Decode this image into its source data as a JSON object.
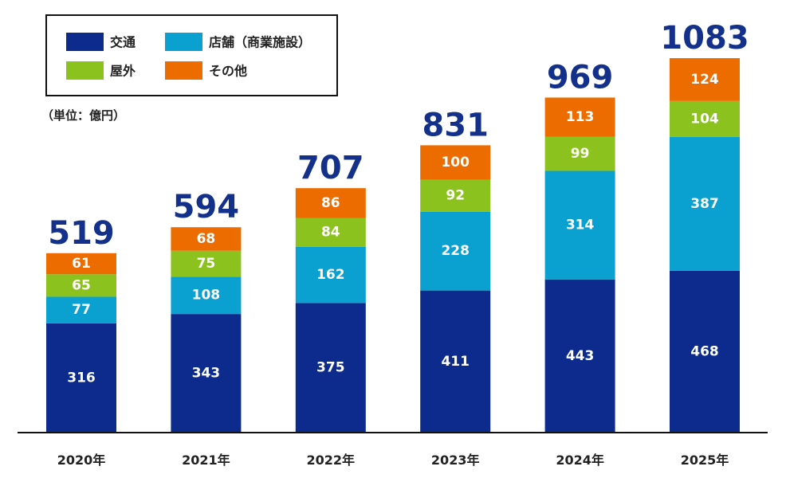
{
  "chart_data": {
    "type": "bar",
    "stacked": true,
    "unit_label": "（単位：億円）",
    "categories": [
      "2020年",
      "2021年",
      "2022年",
      "2023年",
      "2024年",
      "2025年"
    ],
    "series": [
      {
        "name": "交通",
        "color": "#0c2b8c",
        "values": [
          316,
          343,
          375,
          411,
          443,
          468
        ]
      },
      {
        "name": "店舗（商業施設）",
        "color": "#0aa0d0",
        "values": [
          77,
          108,
          162,
          228,
          314,
          387
        ]
      },
      {
        "name": "屋外",
        "color": "#8cc21e",
        "values": [
          65,
          75,
          84,
          92,
          99,
          104
        ]
      },
      {
        "name": "その他",
        "color": "#ec6c00",
        "values": [
          61,
          68,
          86,
          100,
          113,
          124
        ]
      }
    ],
    "totals": [
      519,
      594,
      707,
      831,
      969,
      1083
    ],
    "ylim": [
      0,
      1083
    ],
    "grid": false,
    "legend": "top-left",
    "legend_order": [
      0,
      1,
      2,
      3
    ]
  }
}
